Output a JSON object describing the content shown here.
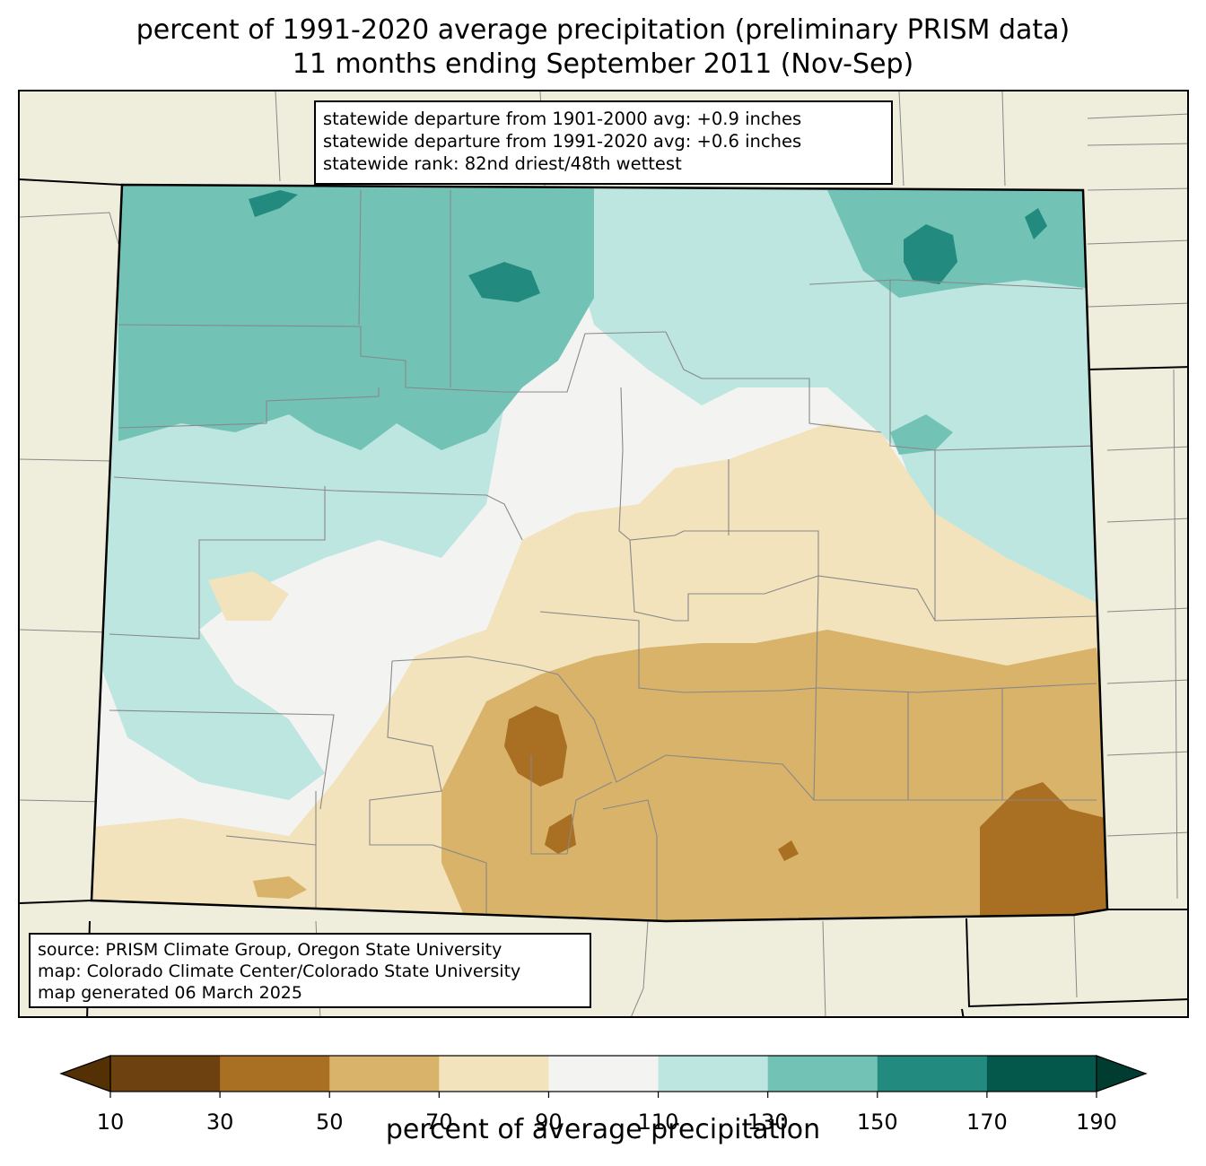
{
  "title": {
    "line1": "percent of 1991-2020 average precipitation (preliminary PRISM data)",
    "line2": "11 months ending September 2011 (Nov-Sep)"
  },
  "stats": {
    "line1": "statewide departure from 1901-2000 avg: +0.9 inches",
    "line2": "statewide departure from 1991-2020 avg: +0.6 inches",
    "line3": "statewide rank: 82nd driest/48th wettest"
  },
  "source": {
    "line1": "source: PRISM Climate Group, Oregon State University",
    "line2": "map: Colorado Climate Center/Colorado State University",
    "line3": "map generated 06 March 2025"
  },
  "legend": {
    "label": "percent of average precipitation",
    "ticks": [
      "10",
      "30",
      "50",
      "70",
      "90",
      "110",
      "130",
      "150",
      "170",
      "190"
    ],
    "bins": [
      {
        "range": "10-30",
        "color": "#6e4110"
      },
      {
        "range": "30-50",
        "color": "#a96f22"
      },
      {
        "range": "50-70",
        "color": "#d9b36a"
      },
      {
        "range": "70-90",
        "color": "#f2e3bd"
      },
      {
        "range": "90-110",
        "color": "#f3f4f2"
      },
      {
        "range": "110-130",
        "color": "#bde6e0"
      },
      {
        "range": "130-150",
        "color": "#72c2b6"
      },
      {
        "range": "150-170",
        "color": "#228a7e"
      },
      {
        "range": "170-190",
        "color": "#03574b"
      }
    ],
    "under_color": "#543005",
    "over_color": "#003c30"
  },
  "colors": {
    "background_land": "#efeedc",
    "state_border": "#000000",
    "county_border": "#888888"
  }
}
